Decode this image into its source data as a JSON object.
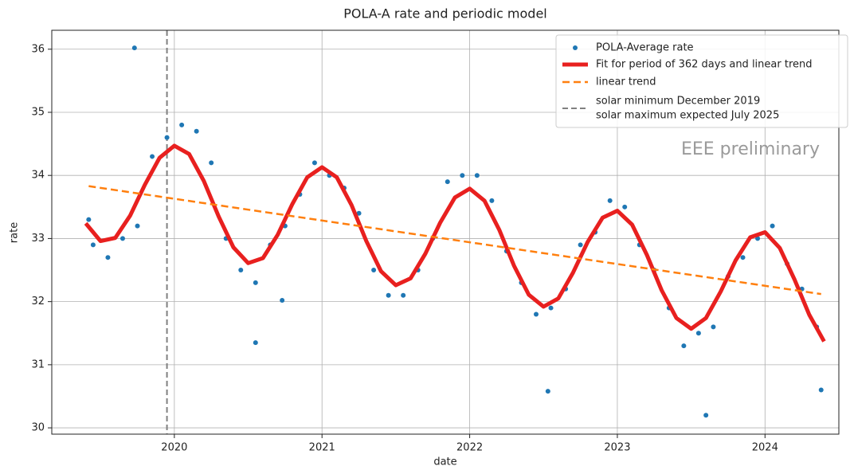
{
  "chart_data": {
    "type": "scatter",
    "title": "POLA-A rate and periodic model",
    "x_label": "date",
    "y_label": "rate",
    "annotation": "EEE preliminary",
    "xlim": [
      2019.17,
      2024.5
    ],
    "ylim": [
      29.9,
      36.3
    ],
    "xticks": [
      2020,
      2021,
      2022,
      2023,
      2024
    ],
    "yticks": [
      30,
      31,
      32,
      33,
      34,
      35,
      36
    ],
    "grid": true,
    "legend": "upper right",
    "series": [
      {
        "name": "POLA-Average rate",
        "color": "#1f77b4",
        "kind": "points",
        "x": [
          2019.42,
          2019.45,
          2019.55,
          2019.65,
          2019.73,
          2019.75,
          2019.85,
          2019.95,
          2020.05,
          2020.15,
          2020.25,
          2020.35,
          2020.45,
          2020.55,
          2020.55,
          2020.65,
          2020.73,
          2020.75,
          2020.85,
          2020.95,
          2021.05,
          2021.15,
          2021.25,
          2021.35,
          2021.45,
          2021.55,
          2021.65,
          2021.75,
          2021.85,
          2021.95,
          2022.05,
          2022.15,
          2022.25,
          2022.35,
          2022.45,
          2022.53,
          2022.55,
          2022.65,
          2022.75,
          2022.85,
          2022.95,
          2023.05,
          2023.15,
          2023.25,
          2023.35,
          2023.45,
          2023.55,
          2023.6,
          2023.65,
          2023.75,
          2023.85,
          2023.95,
          2024.05,
          2024.15,
          2024.25,
          2024.35,
          2024.38
        ],
        "values": [
          33.3,
          32.9,
          32.7,
          33.0,
          36.02,
          33.2,
          34.3,
          34.6,
          34.8,
          34.7,
          34.2,
          33.0,
          32.5,
          32.3,
          31.35,
          32.9,
          32.02,
          33.2,
          33.7,
          34.2,
          34.0,
          33.8,
          33.4,
          32.5,
          32.1,
          32.1,
          32.5,
          33.0,
          33.9,
          34.0,
          34.0,
          33.6,
          32.8,
          32.3,
          31.8,
          30.58,
          31.9,
          32.2,
          32.9,
          33.1,
          33.6,
          33.5,
          32.9,
          32.5,
          31.9,
          31.3,
          31.5,
          30.2,
          31.6,
          32.4,
          32.7,
          33.0,
          33.2,
          32.6,
          32.2,
          31.6,
          30.6
        ]
      },
      {
        "name": "Fit for period of 362 days and linear trend",
        "color": "#e8201f",
        "kind": "line",
        "x": [
          2019.4,
          2019.5,
          2019.6,
          2019.7,
          2019.8,
          2019.9,
          2020.0,
          2020.1,
          2020.2,
          2020.3,
          2020.4,
          2020.5,
          2020.6,
          2020.7,
          2020.8,
          2020.9,
          2021.0,
          2021.1,
          2021.2,
          2021.3,
          2021.4,
          2021.5,
          2021.6,
          2021.7,
          2021.8,
          2021.9,
          2022.0,
          2022.1,
          2022.2,
          2022.3,
          2022.4,
          2022.5,
          2022.6,
          2022.7,
          2022.8,
          2022.9,
          2023.0,
          2023.1,
          2023.2,
          2023.3,
          2023.4,
          2023.5,
          2023.6,
          2023.7,
          2023.8,
          2023.9,
          2024.0,
          2024.1,
          2024.2,
          2024.3,
          2024.4
        ],
        "values": [
          33.24,
          32.96,
          33.01,
          33.36,
          33.85,
          34.28,
          34.47,
          34.34,
          33.91,
          33.35,
          32.86,
          32.61,
          32.69,
          33.06,
          33.55,
          33.97,
          34.13,
          33.97,
          33.53,
          32.96,
          32.48,
          32.26,
          32.37,
          32.76,
          33.25,
          33.65,
          33.79,
          33.6,
          33.14,
          32.57,
          32.11,
          31.92,
          32.05,
          32.46,
          32.95,
          33.33,
          33.44,
          33.22,
          32.74,
          32.18,
          31.74,
          31.57,
          31.74,
          32.16,
          32.65,
          33.02,
          33.1,
          32.85,
          32.35,
          31.79,
          31.37
        ]
      },
      {
        "name": "linear trend",
        "color": "#ff7f0e",
        "kind": "dashed",
        "x": [
          2019.42,
          2024.38
        ],
        "values": [
          33.83,
          32.12
        ]
      }
    ],
    "vline": {
      "x": 2019.95,
      "color": "#808080",
      "names": [
        "solar minimum December 2019",
        "solar maximum expected July 2025"
      ]
    }
  }
}
